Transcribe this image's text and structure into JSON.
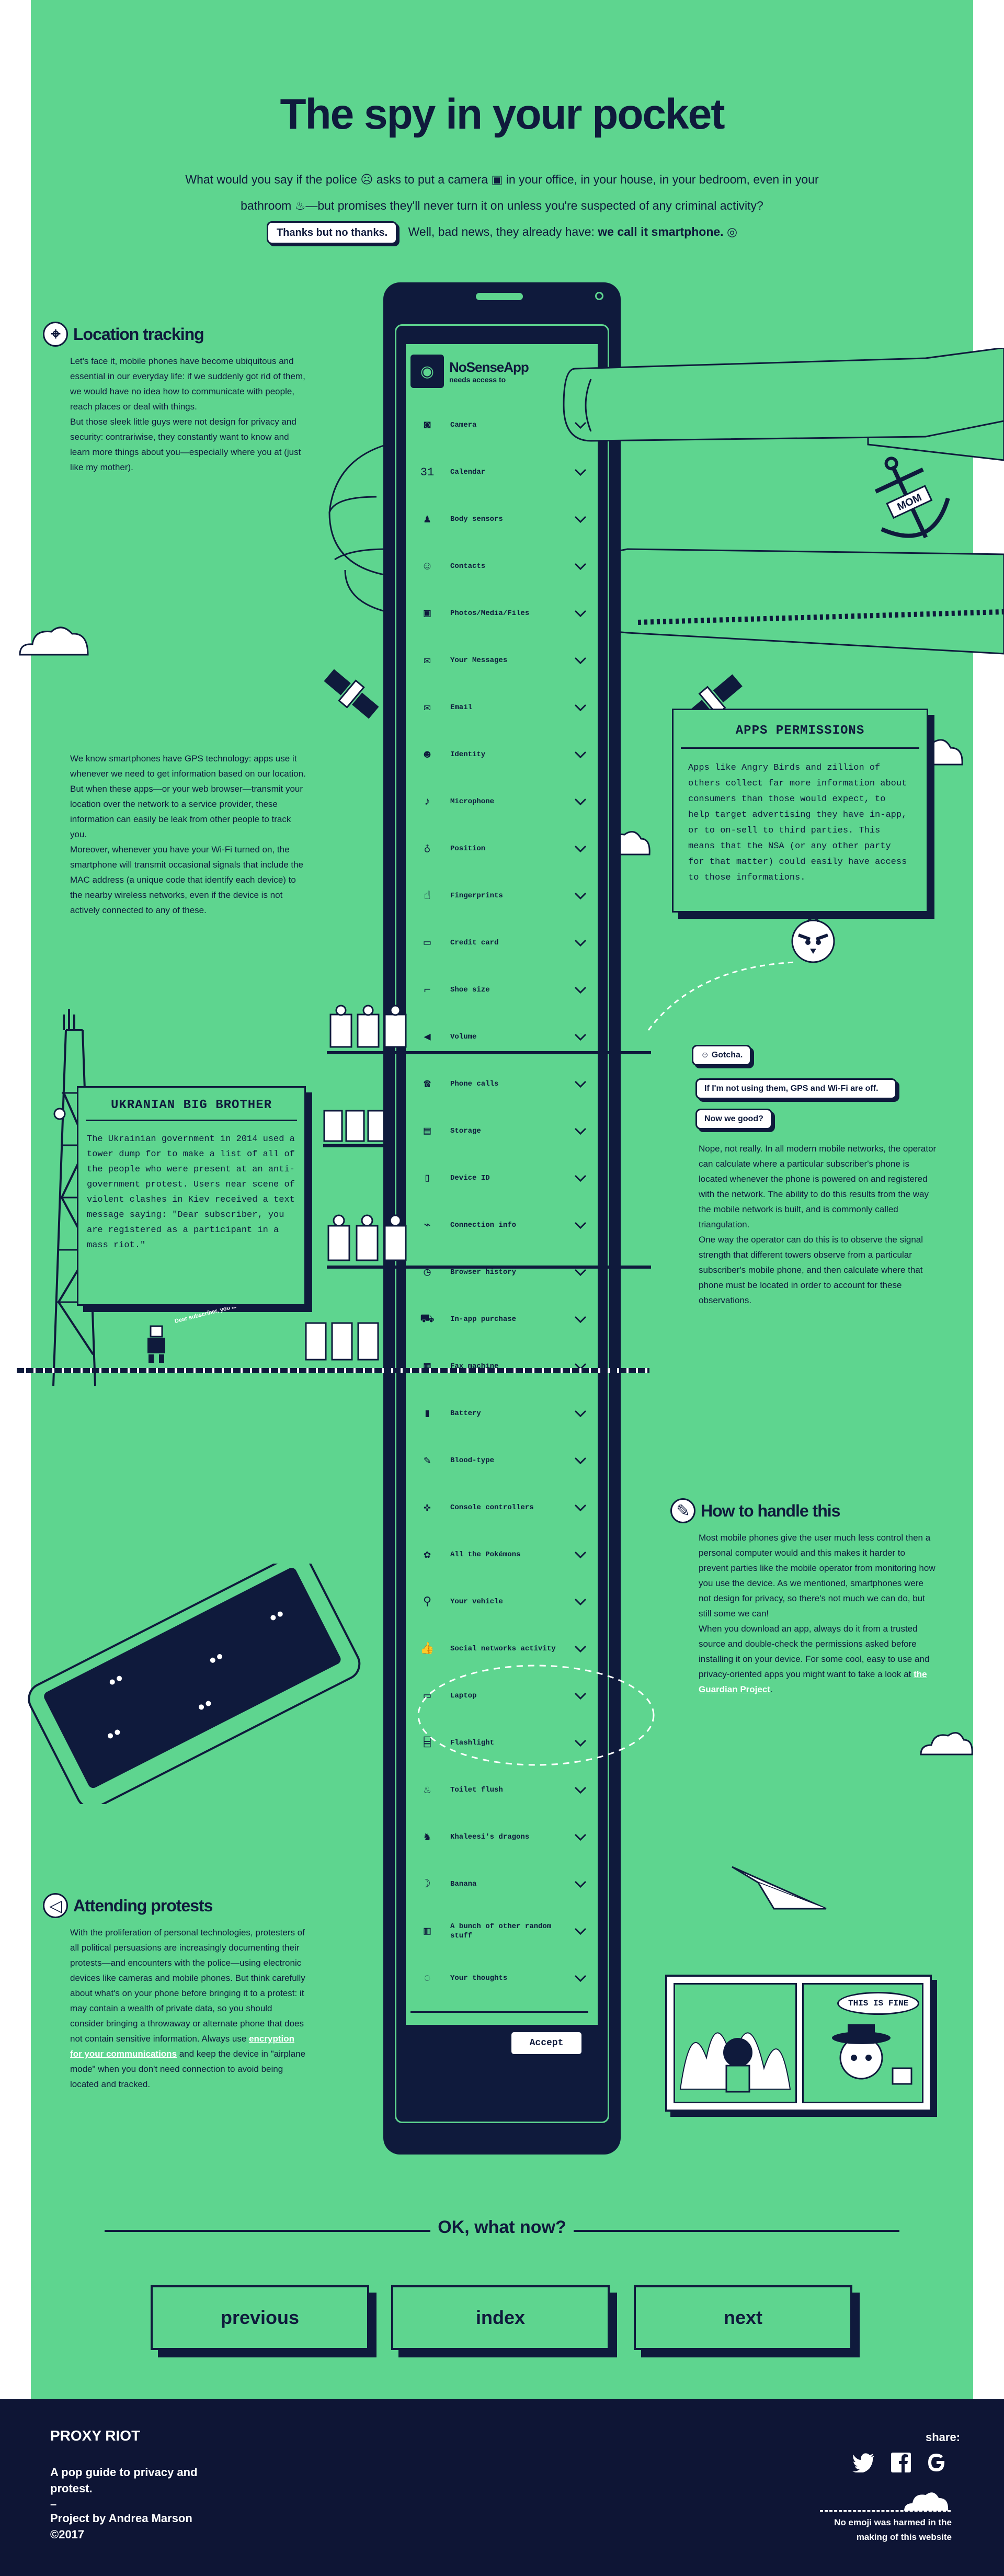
{
  "header": {
    "title": "The spy in your pocket",
    "intro_a": "What would you say if the police",
    "intro_b": "asks to put a camera",
    "intro_c": "in your office, in your house, in your bedroom, even in your bathroom",
    "intro_d": "—but promises they'll never turn it on unless you're suspected of any criminal activity?",
    "pill": "Thanks but no thanks.",
    "answer_a": "Well, bad news, they already have:",
    "answer_b": "we call it smartphone."
  },
  "location": {
    "title": "Location tracking",
    "p1": "Let's face it, mobile phones have become ubiquitous and essential in our everyday life: if we suddenly got rid of them, we would have no idea how to communicate with people, reach places or deal with things.",
    "p2": "But those sleek little guys were not design for privacy and security: contrariwise, they constantly want to know and learn more things about you—especially where you at (just like my mother).",
    "p3": "We know smartphones have GPS technology: apps use it whenever we need to get information based on our location. But when these apps—or your web browser—transmit your location over the network to a service provider, these information can easily be leak from other people to track you.",
    "p4": "Moreover, whenever you have your Wi-Fi turned on, the smartphone will transmit occasional signals that include the MAC address (a unique code that identify each device) to the nearby wireless networks, even if the device is not actively connected to any of these."
  },
  "app": {
    "name": "NoSenseApp",
    "sub": "needs access to",
    "accept": "Accept",
    "permissions": [
      {
        "icon": "camera-icon",
        "glyph": "◙",
        "label": "Camera"
      },
      {
        "icon": "calendar-icon",
        "glyph": "31",
        "label": "Calendar"
      },
      {
        "icon": "body-sensors-icon",
        "glyph": "♟",
        "label": "Body sensors"
      },
      {
        "icon": "contacts-icon",
        "glyph": "☺",
        "label": "Contacts"
      },
      {
        "icon": "photos-icon",
        "glyph": "▣",
        "label": "Photos/Media/Files"
      },
      {
        "icon": "messages-icon",
        "glyph": "✉",
        "label": "Your Messages"
      },
      {
        "icon": "email-icon",
        "glyph": "✉",
        "label": "Email"
      },
      {
        "icon": "identity-icon",
        "glyph": "☻",
        "label": "Identity"
      },
      {
        "icon": "microphone-icon",
        "glyph": "♪",
        "label": "Microphone"
      },
      {
        "icon": "position-icon",
        "glyph": "♁",
        "label": "Position"
      },
      {
        "icon": "fingerprints-icon",
        "glyph": "☝",
        "label": "Fingerprints"
      },
      {
        "icon": "credit-card-icon",
        "glyph": "▭",
        "label": "Credit card"
      },
      {
        "icon": "shoe-icon",
        "glyph": "⌐",
        "label": "Shoe size"
      },
      {
        "icon": "volume-icon",
        "glyph": "◀",
        "label": "Volume"
      },
      {
        "icon": "phone-icon",
        "glyph": "☎",
        "label": "Phone calls"
      },
      {
        "icon": "storage-icon",
        "glyph": "▤",
        "label": "Storage"
      },
      {
        "icon": "device-id-icon",
        "glyph": "▯",
        "label": "Device ID"
      },
      {
        "icon": "connection-icon",
        "glyph": "⌁",
        "label": "Connection info"
      },
      {
        "icon": "history-icon",
        "glyph": "◷",
        "label": "Browser history"
      },
      {
        "icon": "cart-icon",
        "glyph": "⛟",
        "label": "In-app purchase"
      },
      {
        "icon": "fax-icon",
        "glyph": "▦",
        "label": "Fax machine"
      },
      {
        "icon": "battery-icon",
        "glyph": "▮",
        "label": "Battery"
      },
      {
        "icon": "blood-icon",
        "glyph": "✎",
        "label": "Blood-type"
      },
      {
        "icon": "gamepad-icon",
        "glyph": "✜",
        "label": "Console controllers"
      },
      {
        "icon": "pokemon-icon",
        "glyph": "✿",
        "label": "All the Pokémons"
      },
      {
        "icon": "scooter-icon",
        "glyph": "⚲",
        "label": "Your vehicle"
      },
      {
        "icon": "thumbs-up-icon",
        "glyph": "👍",
        "label": "Social networks activity"
      },
      {
        "icon": "laptop-icon",
        "glyph": "▭",
        "label": "Laptop"
      },
      {
        "icon": "flashlight-icon",
        "glyph": "⌸",
        "label": "Flashlight"
      },
      {
        "icon": "toilet-icon",
        "glyph": "♨",
        "label": "Toilet flush"
      },
      {
        "icon": "dragon-icon",
        "glyph": "♞",
        "label": "Khaleesi's dragons"
      },
      {
        "icon": "banana-icon",
        "glyph": "☽",
        "label": "Banana"
      },
      {
        "icon": "stuff-icon",
        "glyph": "▥",
        "label": "A bunch of other random stuff"
      },
      {
        "icon": "thoughts-icon",
        "glyph": "◌",
        "label": "Your thoughts"
      }
    ]
  },
  "apps_box": {
    "title": "APPS PERMISSIONS",
    "text": "Apps like Angry Birds and zillion of others collect far more information about consumers than those would expect, to help target advertising they have in-app, or to on-sell to third parties. This means that the NSA (or any other party for that matter) could easily have access to those informations."
  },
  "ukraine_box": {
    "title": "UKRANIAN BIG BROTHER",
    "text": "The Ukrainian government in 2014 used a tower dump for to make a list of all of the people who were present at an anti-government protest. Users near scene of violent clashes in Kiev received a text message saying: \"Dear subscriber, you are registered as a participant in a mass riot.\"",
    "caption": "Dear subscriber, you are registered as a participant in a mass riot"
  },
  "chat": {
    "gotcha": "Gotcha.",
    "q1": "If I'm not using them, GPS and Wi-Fi are off.",
    "q2": "Now we good?",
    "p1": "Nope, not really. In all modern mobile networks, the operator can calculate where a particular subscriber's phone is located whenever the phone is powered on and registered with the network. The ability to do this results from the way the mobile network is built, and is commonly called triangulation.",
    "p2": "One way the operator can do this is to observe the signal strength that different towers observe from a particular subscriber's mobile phone, and then calculate where that phone must be located in order to account for these observations."
  },
  "handle": {
    "title": "How to handle this",
    "p1": "Most mobile phones give the user much less control then a personal computer would and this makes it harder to prevent parties like the mobile operator from monitoring how you use the device. As we mentioned, smartphones were not design for privacy, so there's not much we can do, but still some we can!",
    "p2": "When you download an app, always do it from a trusted source and double-check the permissions asked before installing it on your device. For some cool, easy to use and privacy-oriented apps you might want to take a look at",
    "link": "the Guardian Project",
    "end": "."
  },
  "protests": {
    "title": "Attending protests",
    "p1": "With the proliferation of personal technologies, protesters of all political persuasions are increasingly documenting their protests—and encounters with the police—using electronic devices like cameras and mobile phones. But think carefully about what's on your phone before bringing it to a protest: it may contain a wealth of private data, so you should consider bringing a throwaway or alternate phone that does not contain sensitive information. Always use",
    "link": "encryption for your communications",
    "p2": "and keep the device in \"airplane mode\" when you don't need connection to avoid being located and tracked."
  },
  "comic": {
    "speech": "THIS IS FINE"
  },
  "anchor_tattoo": "MOM",
  "nav": {
    "heading": "OK, what now?",
    "previous": "previous",
    "index": "index",
    "next": "next"
  },
  "footer": {
    "brand": "PROXY RIOT",
    "tagline": "A pop guide to privacy and protest.",
    "dash": "–",
    "credit": "Project by Andrea Marson",
    "year": "©2017",
    "share": "share:",
    "note": "No emoji was harmed in the making of this website"
  },
  "colors": {
    "green": "#5ed58f",
    "navy": "#0f1a3c",
    "footer": "#0e1535"
  }
}
